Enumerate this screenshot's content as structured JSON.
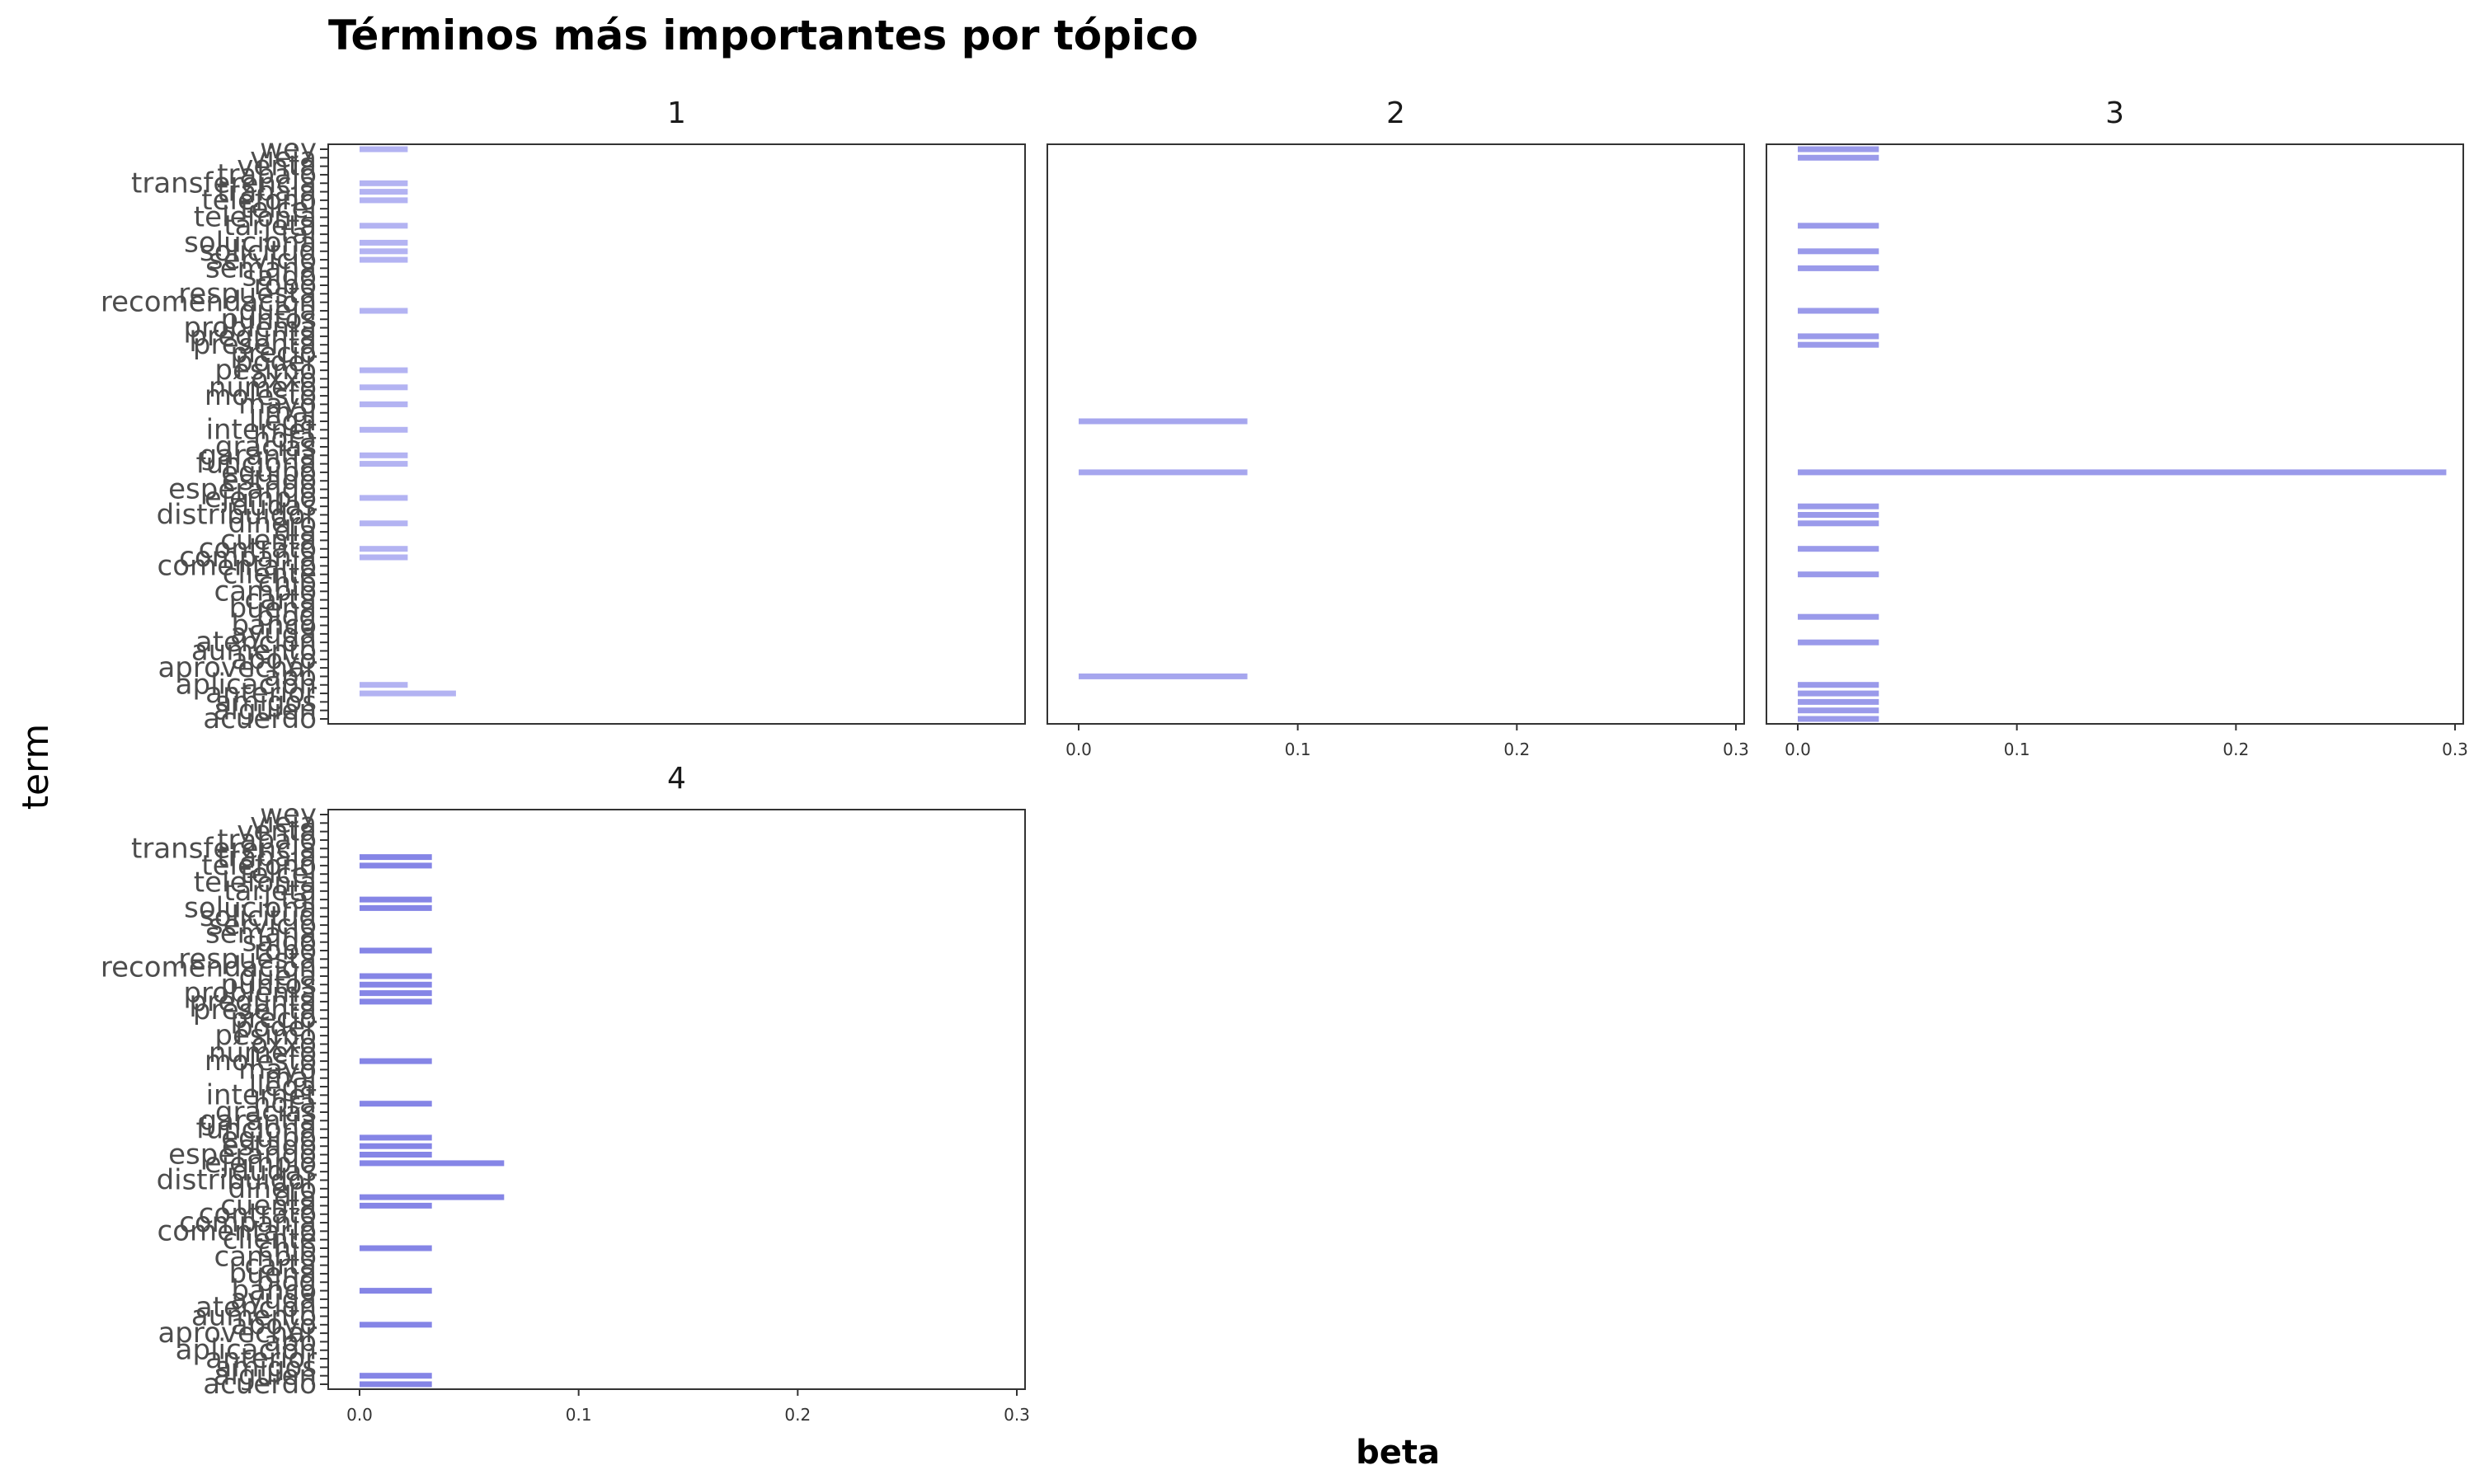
{
  "chart_data": {
    "type": "bar",
    "orientation": "horizontal",
    "title": "Términos más importantes por tópico",
    "xlabel": "beta",
    "ylabel": "term",
    "xlim": [
      0,
      0.3
    ],
    "x_ticks": [
      "0.0",
      "0.1",
      "0.2",
      "0.3"
    ],
    "grid": false,
    "categories": [
      "wey",
      "vieja",
      "venta",
      "trabajo",
      "transferencia",
      "trabaja",
      "teléfono",
      "telcel",
      "telefonia",
      "tarjeta",
      "tal",
      "soluciona",
      "solicitud",
      "servicio",
      "semana",
      "saldo",
      "robo",
      "respuesta",
      "recomendación",
      "queja",
      "puntos",
      "problema",
      "pregunta",
      "presenta",
      "precio",
      "poder",
      "pésimo",
      "oxxo",
      "número",
      "molesto",
      "mayo",
      "mal",
      "llega",
      "internet",
      "hora",
      "gracias",
      "garantía",
      "funciona",
      "equipo",
      "estado",
      "esperando",
      "ejemplo",
      "dudas",
      "distribuidor",
      "dinero",
      "día",
      "cuenta",
      "contrato",
      "compañía",
      "comentario",
      "cliente",
      "chip",
      "cambio",
      "carta",
      "buena",
      "blog",
      "banco",
      "ayuda",
      "atención",
      "aumento",
      "apoyo",
      "aprovechar",
      "app",
      "aplicación",
      "anterior",
      "amigos",
      "alguien",
      "acuerdo"
    ],
    "series": [
      {
        "name": "1",
        "values": [
          0.022,
          0,
          0,
          0,
          0.022,
          0.022,
          0.022,
          0,
          0,
          0.022,
          0,
          0.022,
          0.022,
          0.022,
          0,
          0,
          0,
          0,
          0,
          0.022,
          0,
          0,
          0,
          0,
          0,
          0,
          0.022,
          0,
          0.022,
          0,
          0.022,
          0,
          0,
          0.022,
          0,
          0,
          0.022,
          0.022,
          0,
          0,
          0,
          0.022,
          0,
          0,
          0.022,
          0,
          0,
          0.022,
          0.022,
          0,
          0,
          0,
          0,
          0,
          0,
          0,
          0,
          0,
          0,
          0,
          0,
          0,
          0,
          0.022,
          0.044,
          0,
          0,
          0
        ]
      },
      {
        "name": "2",
        "values": [
          0,
          0,
          0,
          0,
          0,
          0,
          0,
          0,
          0,
          0,
          0,
          0,
          0,
          0,
          0,
          0,
          0,
          0,
          0,
          0,
          0,
          0,
          0,
          0,
          0,
          0,
          0,
          0,
          0,
          0,
          0,
          0,
          0.077,
          0,
          0,
          0,
          0,
          0,
          0.077,
          0,
          0,
          0,
          0,
          0,
          0,
          0,
          0,
          0,
          0,
          0,
          0,
          0,
          0,
          0,
          0,
          0,
          0,
          0,
          0,
          0,
          0,
          0,
          0.077,
          0,
          0,
          0,
          0,
          0
        ]
      },
      {
        "name": "3",
        "values": [
          0.037,
          0.037,
          0,
          0,
          0,
          0,
          0,
          0,
          0,
          0.037,
          0,
          0,
          0.037,
          0,
          0.037,
          0,
          0,
          0,
          0,
          0.037,
          0,
          0,
          0.037,
          0.037,
          0,
          0,
          0,
          0,
          0,
          0,
          0,
          0,
          0,
          0,
          0,
          0,
          0,
          0,
          0.296,
          0,
          0,
          0,
          0.037,
          0.037,
          0.037,
          0,
          0,
          0.037,
          0,
          0,
          0.037,
          0,
          0,
          0,
          0,
          0.037,
          0,
          0,
          0.037,
          0,
          0,
          0,
          0,
          0.037,
          0.037,
          0.037,
          0.037,
          0.037
        ]
      },
      {
        "name": "4",
        "values": [
          0,
          0,
          0,
          0,
          0,
          0.033,
          0.033,
          0,
          0,
          0,
          0.033,
          0.033,
          0,
          0,
          0,
          0,
          0.033,
          0,
          0,
          0.033,
          0.033,
          0.033,
          0.033,
          0,
          0,
          0,
          0,
          0,
          0,
          0.033,
          0,
          0,
          0,
          0,
          0.033,
          0,
          0,
          0,
          0.033,
          0.033,
          0.033,
          0.066,
          0,
          0,
          0,
          0.066,
          0.033,
          0,
          0,
          0,
          0,
          0.033,
          0,
          0,
          0,
          0,
          0.033,
          0,
          0,
          0,
          0.033,
          0,
          0,
          0,
          0,
          0,
          0.033,
          0.033
        ]
      }
    ],
    "colors": {
      "topic_1": "#b3b3f2",
      "topic_2": "#a6a6ee",
      "topic_3": "#9a9aea",
      "topic_4": "#8585e6"
    }
  }
}
